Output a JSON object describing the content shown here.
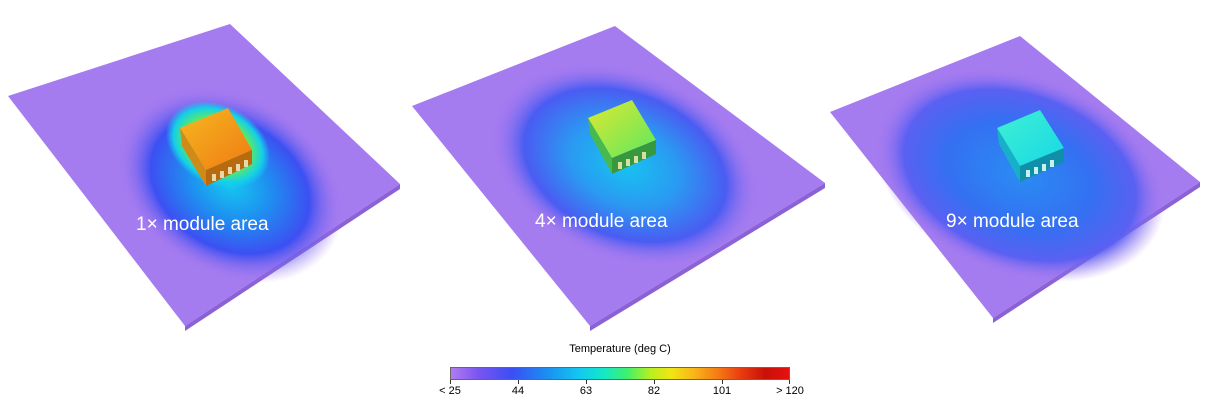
{
  "panels": [
    {
      "label": "1× module area"
    },
    {
      "label": "4× module area"
    },
    {
      "label": "9× module area"
    }
  ],
  "legend": {
    "title": "Temperature (deg C)",
    "ticks": [
      "< 25",
      "44",
      "63",
      "82",
      "101",
      "> 120"
    ]
  }
}
